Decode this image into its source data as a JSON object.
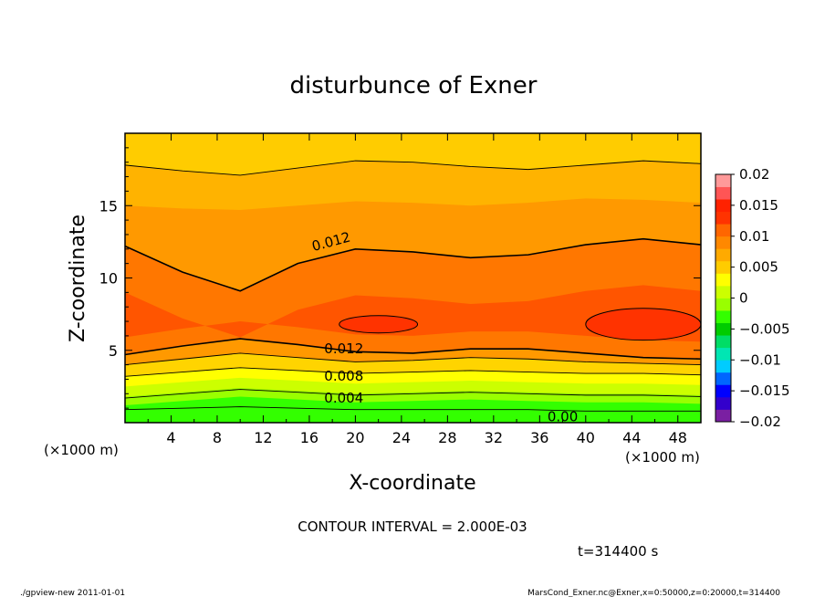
{
  "chart_data": {
    "type": "heatmap",
    "title": "disturbunce of Exner",
    "xlabel": "X-coordinate",
    "ylabel": "Z-coordinate",
    "x_unit": "(×1000 m)",
    "xlim": [
      0,
      50
    ],
    "ylim": [
      0,
      20
    ],
    "x_ticks": [
      4,
      8,
      12,
      16,
      20,
      24,
      28,
      32,
      36,
      40,
      44,
      48
    ],
    "y_ticks": [
      5,
      10,
      15
    ],
    "colorbar": {
      "range": [
        -0.02,
        0.02
      ],
      "ticks": [
        "0.02",
        "0.015",
        "0.01",
        "0.005",
        "0",
        "−0.005",
        "−0.01",
        "−0.015",
        "−0.02"
      ]
    },
    "contour_interval": "CONTOUR INTERVAL = 2.000E-03",
    "contour_labels": [
      "0.012",
      "0.012",
      "0.008",
      "0.004",
      "0.00"
    ],
    "bands": [
      {
        "value": 0.001,
        "color": "#33ff00",
        "top": [
          1.2,
          1.5,
          1.8,
          1.6,
          1.4,
          1.5,
          1.6,
          1.5,
          1.4,
          1.4,
          1.3
        ]
      },
      {
        "value": 0.003,
        "color": "#99ff00",
        "top": [
          1.8,
          2.1,
          2.4,
          2.2,
          2.0,
          2.1,
          2.2,
          2.1,
          2.0,
          2.0,
          1.9
        ]
      },
      {
        "value": 0.005,
        "color": "#ccff00",
        "top": [
          2.5,
          2.8,
          3.1,
          2.9,
          2.7,
          2.8,
          2.9,
          2.8,
          2.7,
          2.7,
          2.6
        ]
      },
      {
        "value": 0.007,
        "color": "#ffff00",
        "top": [
          3.2,
          3.5,
          3.8,
          3.6,
          3.4,
          3.5,
          3.6,
          3.5,
          3.4,
          3.4,
          3.3
        ]
      },
      {
        "value": 0.009,
        "color": "#ffd400",
        "top": [
          4.0,
          4.4,
          4.8,
          4.5,
          4.2,
          4.3,
          4.5,
          4.4,
          4.2,
          4.1,
          4.0
        ]
      },
      {
        "value": 0.012,
        "color": "#ff9900",
        "top": [
          4.7,
          5.3,
          5.8,
          5.4,
          4.9,
          4.8,
          5.1,
          5.1,
          4.8,
          4.5,
          4.4
        ]
      },
      {
        "value": 0.013,
        "color": "#ff7700",
        "top": [
          12.2,
          10.4,
          9.1,
          11.0,
          12.0,
          11.8,
          11.4,
          11.6,
          12.3,
          12.7,
          12.3
        ]
      },
      {
        "value": 0.011,
        "color": "#ff9900",
        "top": [
          15.0,
          14.8,
          14.7,
          15.0,
          15.3,
          15.2,
          15.0,
          15.2,
          15.5,
          15.4,
          15.2
        ]
      },
      {
        "value": 0.009,
        "color": "#ffb300",
        "top": [
          17.8,
          17.4,
          17.1,
          17.6,
          18.1,
          18.0,
          17.7,
          17.5,
          17.8,
          18.1,
          17.9
        ]
      },
      {
        "value": 0.007,
        "color": "#ffcc00",
        "top": [
          20,
          20,
          20,
          20,
          20,
          20,
          20,
          20,
          20,
          20,
          20
        ]
      }
    ],
    "core_region_color": "#ff5500",
    "max_region_color": "#ff3300",
    "contour_lines": [
      {
        "value": "0.000",
        "points": [
          0.9,
          1.0,
          1.1,
          1.0,
          0.9,
          0.9,
          0.9,
          0.9,
          0.8,
          0.8,
          0.8
        ]
      },
      {
        "value": "0.004",
        "points": [
          1.7,
          2.0,
          2.3,
          2.1,
          1.9,
          2.0,
          2.1,
          2.0,
          1.9,
          1.9,
          1.8
        ]
      },
      {
        "value": "0.008",
        "points": [
          3.2,
          3.5,
          3.8,
          3.6,
          3.4,
          3.5,
          3.6,
          3.5,
          3.4,
          3.4,
          3.3
        ]
      },
      {
        "value": "0.010",
        "points": [
          4.0,
          4.4,
          4.8,
          4.5,
          4.2,
          4.3,
          4.5,
          4.4,
          4.2,
          4.1,
          4.0
        ]
      },
      {
        "value": "0.012",
        "points": [
          4.7,
          5.3,
          5.8,
          5.4,
          4.9,
          4.8,
          5.1,
          5.1,
          4.8,
          4.5,
          4.4
        ]
      },
      {
        "value": "0.012",
        "points": [
          12.2,
          10.4,
          9.1,
          11.0,
          12.0,
          11.8,
          11.4,
          11.6,
          12.3,
          12.7,
          12.3
        ]
      },
      {
        "value": "0.010",
        "points": [
          17.8,
          17.4,
          17.1,
          17.6,
          18.1,
          18.0,
          17.7,
          17.5,
          17.8,
          18.1,
          17.9
        ]
      }
    ],
    "max_cells": [
      {
        "center": [
          22,
          6.8
        ],
        "radius": [
          3.4,
          0.6
        ]
      },
      {
        "center": [
          45,
          6.8
        ],
        "radius": [
          5,
          1.1
        ]
      }
    ]
  },
  "time_label": "t=314400 s",
  "footer_left": "./gpview-new   2011-01-01",
  "footer_right": "MarsCond_Exner.nc@Exner,x=0:50000,z=0:20000,t=314400"
}
